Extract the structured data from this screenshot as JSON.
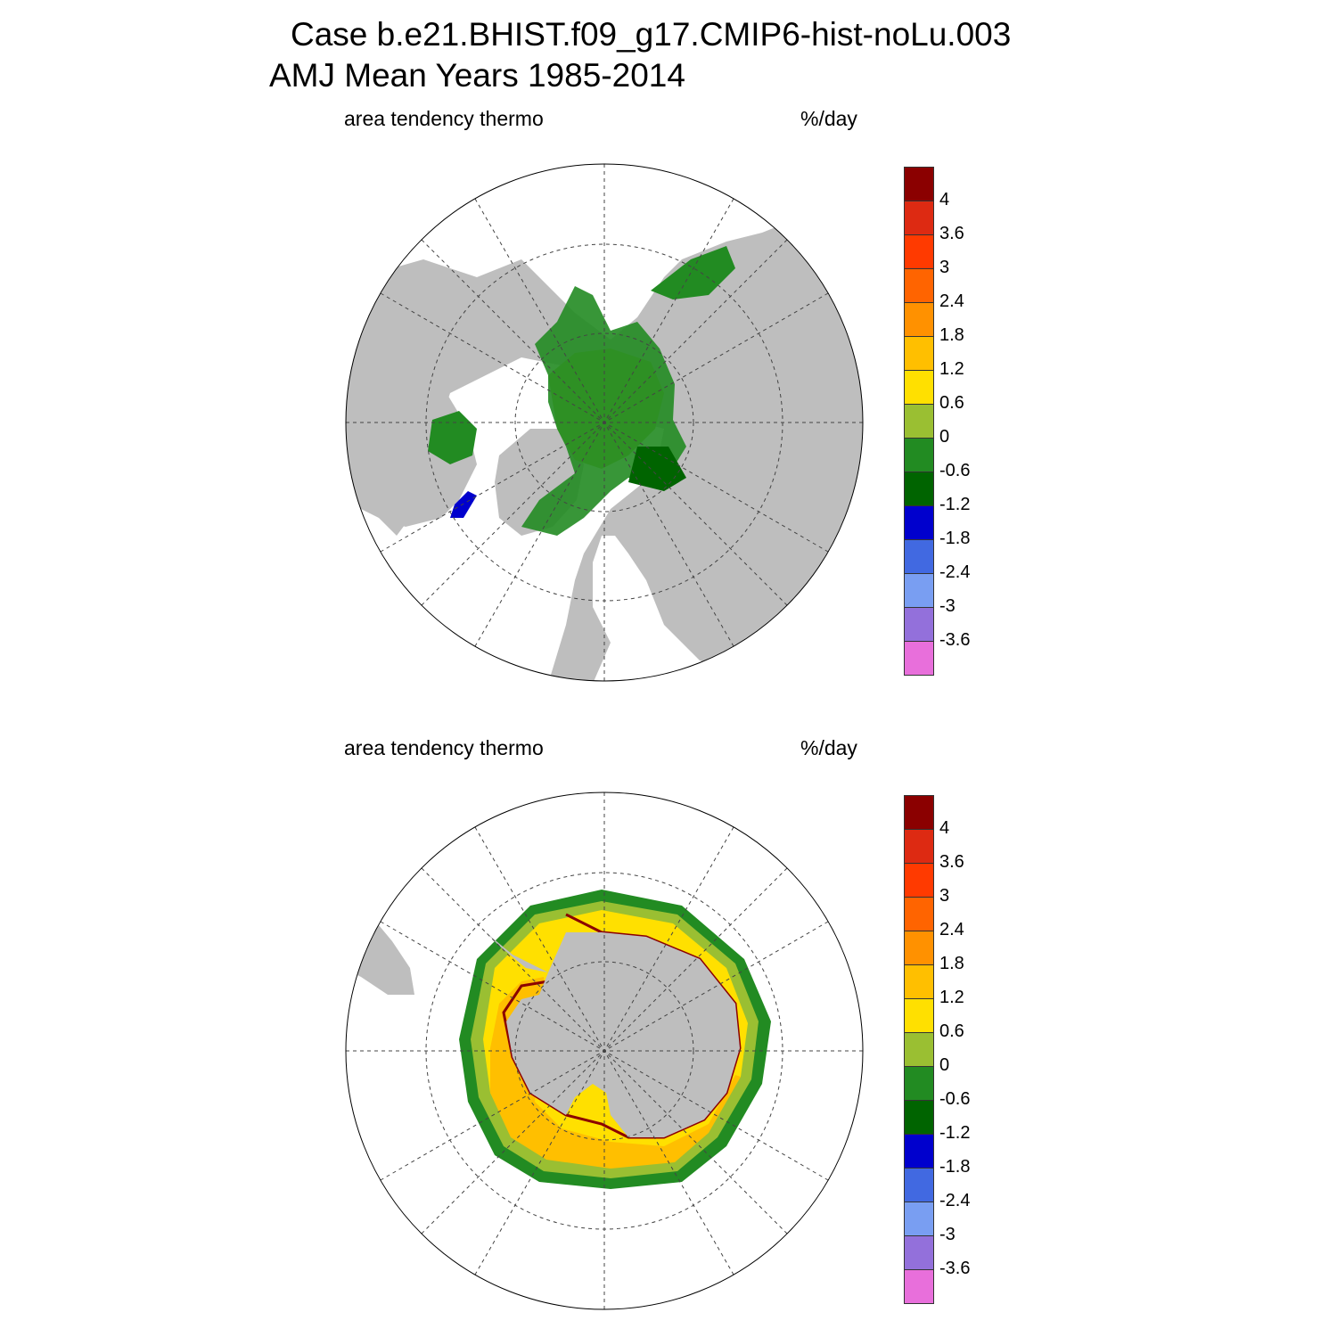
{
  "header": {
    "case_line": "Case b.e21.BHIST.f09_g17.CMIP6-hist-noLu.003",
    "period_line": "AMJ Mean   Years 1985-2014"
  },
  "panels": [
    {
      "hemisphere": "north",
      "variable_label": "area tendency thermo",
      "units_label": "%/day"
    },
    {
      "hemisphere": "south",
      "variable_label": "area tendency thermo",
      "units_label": "%/day"
    }
  ],
  "colorbar": {
    "colors": [
      "#8b0000",
      "#dd2a12",
      "#ff3a00",
      "#ff6400",
      "#ff9100",
      "#ffbf00",
      "#ffe000",
      "#9abf32",
      "#228b22",
      "#006400",
      "#0000cd",
      "#4169e1",
      "#799ef2",
      "#9370db",
      "#e86fdb"
    ],
    "ticks": [
      "4",
      "3.6",
      "3",
      "2.4",
      "1.8",
      "1.2",
      "0.6",
      "0",
      "-0.6",
      "-1.2",
      "-1.8",
      "-2.4",
      "-3",
      "-3.6"
    ]
  },
  "colors": {
    "land": "#bebebe",
    "ocean": "#ffffff",
    "outline": "#000000"
  }
}
